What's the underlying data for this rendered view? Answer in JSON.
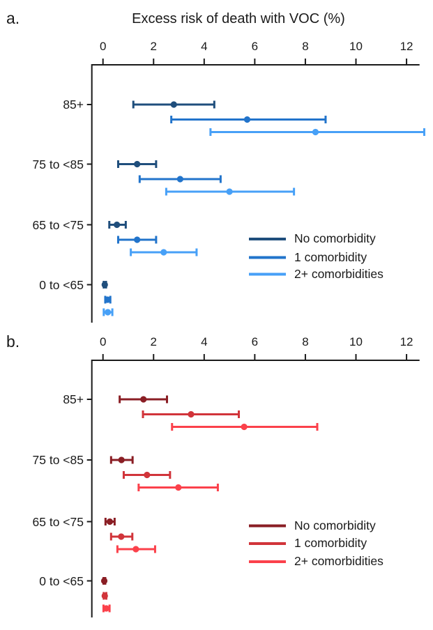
{
  "figure": {
    "title": "Excess risk of death with VOC (%)",
    "background": "#ffffff",
    "text_color": "#1a1a1a",
    "axis_color": "#1a1a1a"
  },
  "chart_data": [
    {
      "type": "scatter",
      "subtype": "dot-and-ci-forest",
      "panel_label": "a.",
      "title": "Excess risk of death with VOC (%)",
      "xlabel": "Excess risk of death with VOC (%)",
      "xlim": [
        0,
        12.6
      ],
      "xticks": [
        "0",
        "2",
        "4",
        "6",
        "8",
        "10",
        "12"
      ],
      "xtick_values": [
        0,
        2,
        4,
        6,
        8,
        10,
        12
      ],
      "grid": false,
      "axis_position": "top",
      "legend_position": "right-middle",
      "categories": [
        "85+",
        "75 to <85",
        "65 to <75",
        "0 to <65"
      ],
      "series": [
        {
          "name": "No comorbidity",
          "color": "#1f4e7c",
          "values": [
            2.8,
            1.35,
            0.55,
            0.07
          ],
          "ci_low": [
            1.2,
            0.6,
            0.25,
            0.03
          ],
          "ci_high": [
            4.4,
            2.1,
            0.9,
            0.12
          ]
        },
        {
          "name": "1 comorbidity",
          "color": "#2274cb",
          "values": [
            5.7,
            3.05,
            1.35,
            0.18
          ],
          "ci_low": [
            2.7,
            1.45,
            0.6,
            0.09
          ],
          "ci_high": [
            8.8,
            4.65,
            2.1,
            0.29
          ]
        },
        {
          "name": "2+ comorbidities",
          "color": "#47a0f7",
          "values": [
            8.4,
            5.0,
            2.4,
            0.19
          ],
          "ci_low": [
            4.25,
            2.5,
            1.1,
            0.03
          ],
          "ci_high": [
            12.7,
            7.55,
            3.7,
            0.37
          ]
        }
      ]
    },
    {
      "type": "scatter",
      "subtype": "dot-and-ci-forest",
      "panel_label": "b.",
      "title": "",
      "xlim": [
        0,
        12.6
      ],
      "xticks": [
        "0",
        "2",
        "4",
        "6",
        "8",
        "10",
        "12"
      ],
      "xtick_values": [
        0,
        2,
        4,
        6,
        8,
        10,
        12
      ],
      "grid": false,
      "axis_position": "top",
      "legend_position": "right-middle",
      "categories": [
        "85+",
        "75 to <85",
        "65 to <75",
        "0 to <65"
      ],
      "series": [
        {
          "name": "No comorbidity",
          "color": "#8a1e24",
          "values": [
            1.6,
            0.73,
            0.27,
            0.05
          ],
          "ci_low": [
            0.66,
            0.32,
            0.1,
            0.02
          ],
          "ci_high": [
            2.53,
            1.17,
            0.46,
            0.09
          ]
        },
        {
          "name": "1 comorbidity",
          "color": "#d1343a",
          "values": [
            3.48,
            1.74,
            0.72,
            0.07
          ],
          "ci_low": [
            1.58,
            0.82,
            0.32,
            0.03
          ],
          "ci_high": [
            5.37,
            2.65,
            1.16,
            0.13
          ]
        },
        {
          "name": "2+ comorbidities",
          "color": "#fb414b",
          "values": [
            5.58,
            2.98,
            1.3,
            0.13
          ],
          "ci_low": [
            2.73,
            1.41,
            0.57,
            0.02
          ],
          "ci_high": [
            8.47,
            4.54,
            2.06,
            0.26
          ]
        }
      ]
    }
  ]
}
